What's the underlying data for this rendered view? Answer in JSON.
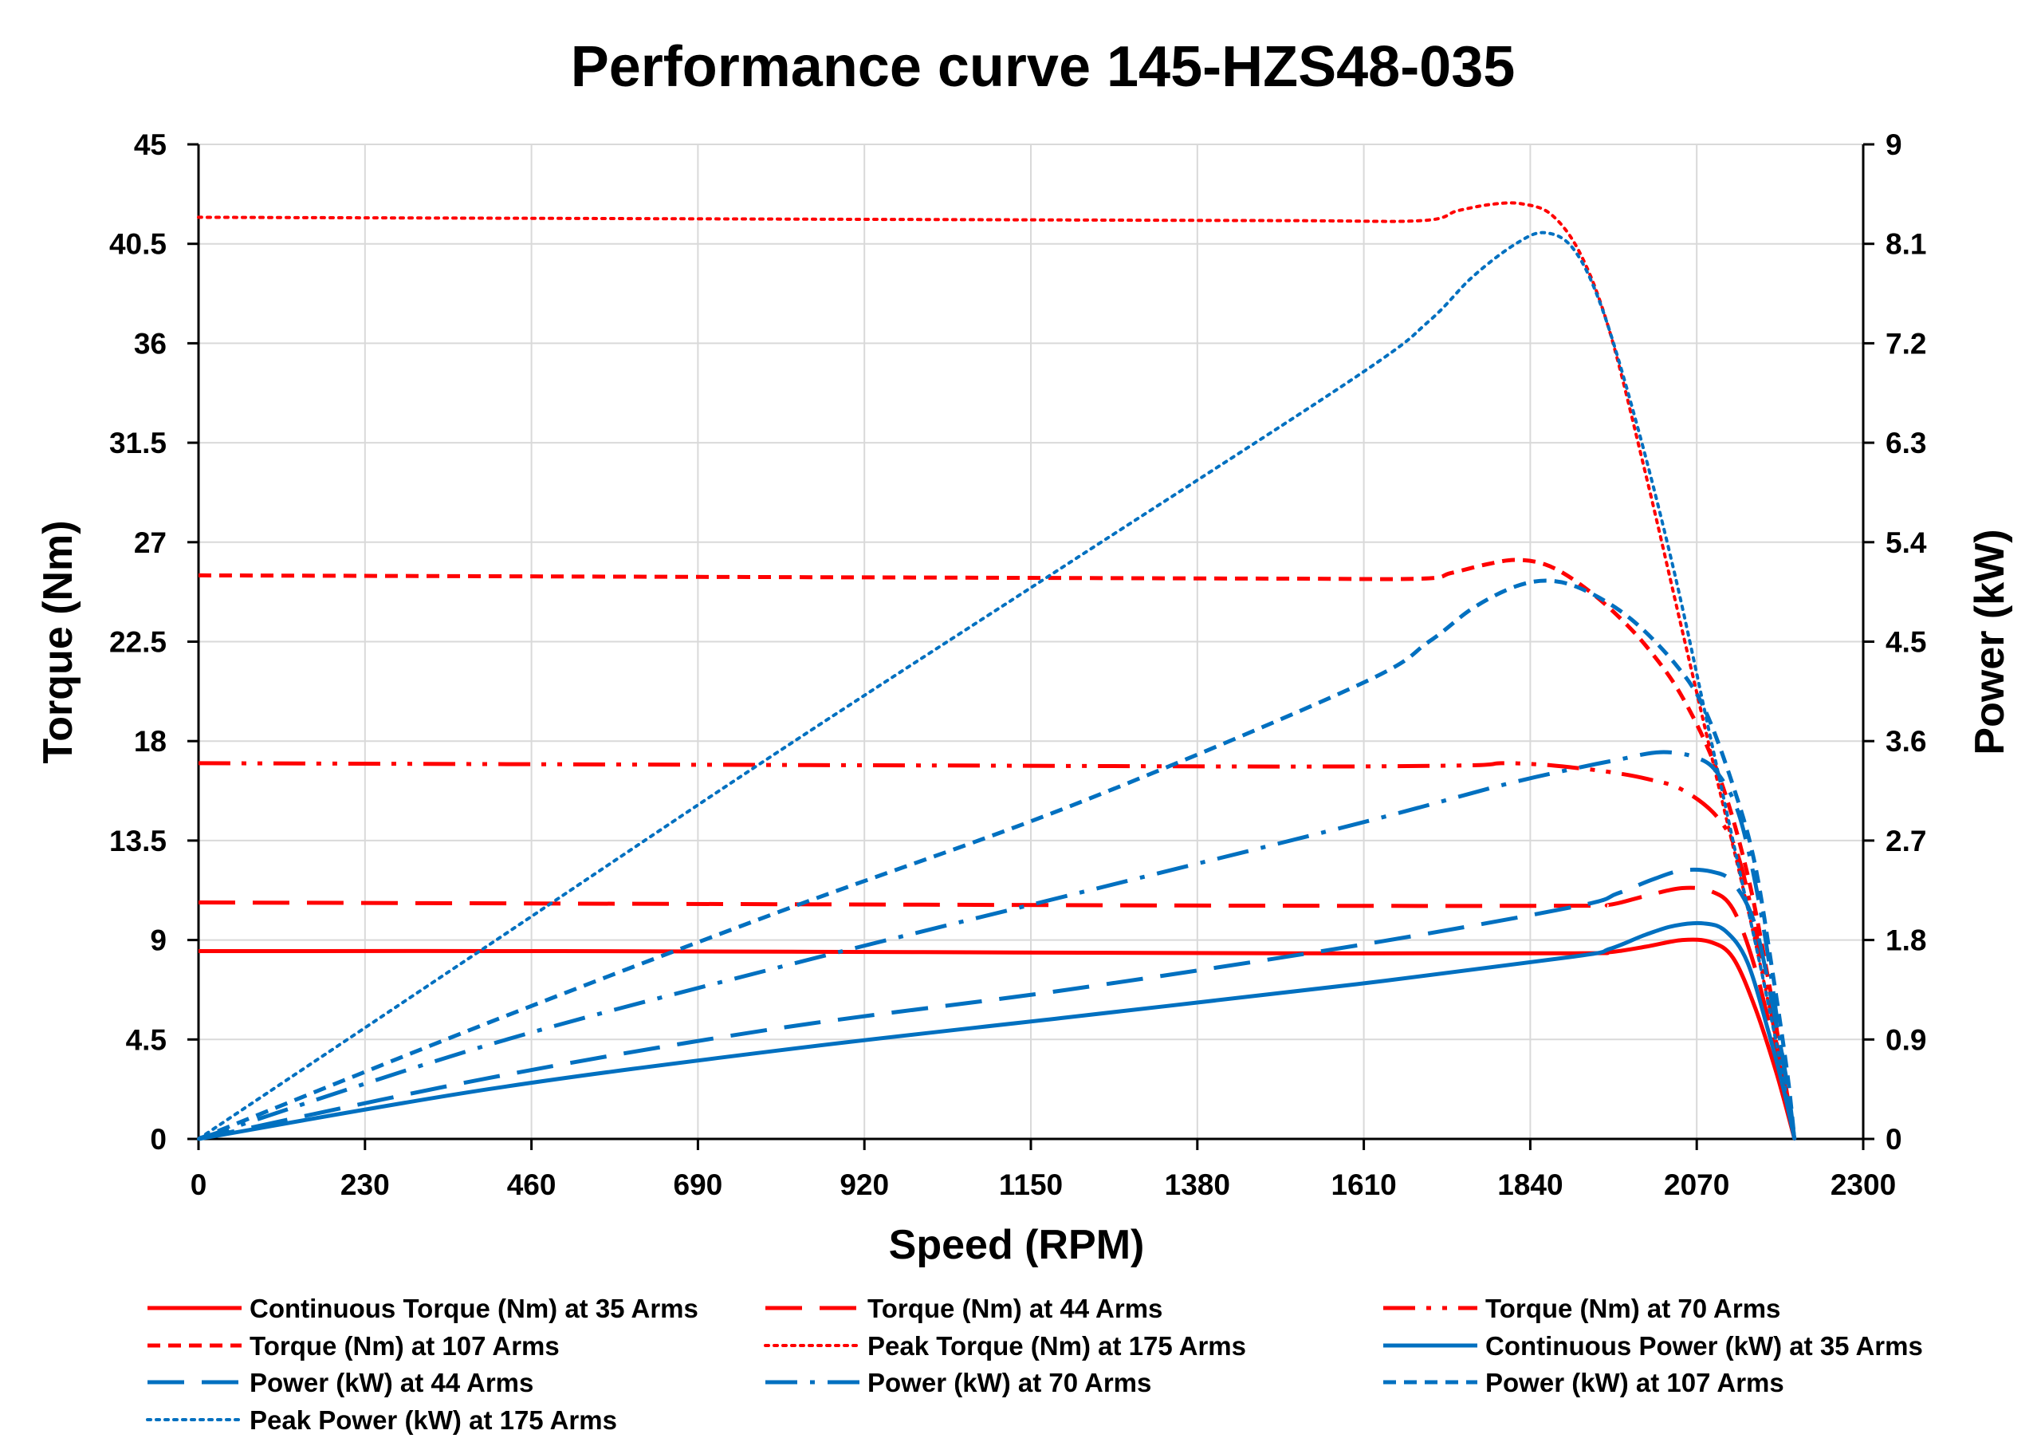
{
  "chart_data": {
    "type": "line",
    "title": "Performance curve 145-HZS48-035",
    "xlabel": "Speed (RPM)",
    "ylabel": "Torque (Nm)",
    "y2label": "Power (kW)",
    "xlim": [
      0,
      2300
    ],
    "ylim": [
      0,
      45
    ],
    "y2lim": [
      0,
      9
    ],
    "xticks": [
      "0",
      "230",
      "460",
      "690",
      "920",
      "1150",
      "1380",
      "1610",
      "1840",
      "2070",
      "2300"
    ],
    "yticks": [
      "0",
      "4.5",
      "9",
      "13.5",
      "18",
      "22.5",
      "27",
      "31.5",
      "36",
      "40.5",
      "45"
    ],
    "y2ticks": [
      "0",
      "0.9",
      "1.8",
      "2.7",
      "3.6",
      "4.5",
      "5.4",
      "6.3",
      "7.2",
      "8.1",
      "9"
    ],
    "grid": true,
    "legend_position": "bottom",
    "series": [
      {
        "name": "Continuous Torque (Nm) at 35 Arms",
        "axis": "left",
        "color": "#ff0000",
        "dash": "solid",
        "points": [
          [
            0,
            8.5
          ],
          [
            500,
            8.5
          ],
          [
            1000,
            8.45
          ],
          [
            1500,
            8.4
          ],
          [
            1900,
            8.4
          ],
          [
            1950,
            8.45
          ],
          [
            2000,
            8.7
          ],
          [
            2050,
            9.0
          ],
          [
            2090,
            8.9
          ],
          [
            2120,
            8.2
          ],
          [
            2150,
            6.0
          ],
          [
            2180,
            3.0
          ],
          [
            2205,
            0
          ]
        ]
      },
      {
        "name": "Torque (Nm) at 44 Arms",
        "axis": "left",
        "color": "#ff0000",
        "dash": "long-dash",
        "points": [
          [
            0,
            10.7
          ],
          [
            500,
            10.65
          ],
          [
            1000,
            10.6
          ],
          [
            1500,
            10.55
          ],
          [
            1900,
            10.55
          ],
          [
            1950,
            10.6
          ],
          [
            2000,
            11.0
          ],
          [
            2050,
            11.35
          ],
          [
            2090,
            11.2
          ],
          [
            2120,
            10.4
          ],
          [
            2150,
            7.8
          ],
          [
            2180,
            3.8
          ],
          [
            2205,
            0
          ]
        ]
      },
      {
        "name": "Torque (Nm) at 70 Arms",
        "axis": "left",
        "color": "#ff0000",
        "dash": "dash-dot-dot",
        "points": [
          [
            0,
            17.0
          ],
          [
            500,
            16.95
          ],
          [
            1000,
            16.9
          ],
          [
            1500,
            16.85
          ],
          [
            1750,
            16.9
          ],
          [
            1800,
            17.0
          ],
          [
            1850,
            16.95
          ],
          [
            1900,
            16.8
          ],
          [
            1950,
            16.6
          ],
          [
            2000,
            16.3
          ],
          [
            2050,
            15.8
          ],
          [
            2100,
            14.5
          ],
          [
            2130,
            12.5
          ],
          [
            2160,
            8.0
          ],
          [
            2185,
            3.5
          ],
          [
            2205,
            0
          ]
        ]
      },
      {
        "name": "Torque (Nm) at 107 Arms",
        "axis": "left",
        "color": "#ff0000",
        "dash": "short-dash",
        "points": [
          [
            0,
            25.5
          ],
          [
            500,
            25.45
          ],
          [
            1000,
            25.4
          ],
          [
            1500,
            25.35
          ],
          [
            1690,
            25.35
          ],
          [
            1730,
            25.6
          ],
          [
            1780,
            26.0
          ],
          [
            1820,
            26.2
          ],
          [
            1860,
            26.0
          ],
          [
            1900,
            25.3
          ],
          [
            1950,
            24.0
          ],
          [
            2000,
            22.3
          ],
          [
            2050,
            20.0
          ],
          [
            2100,
            16.5
          ],
          [
            2140,
            12.0
          ],
          [
            2170,
            7.0
          ],
          [
            2190,
            3.0
          ],
          [
            2205,
            0
          ]
        ]
      },
      {
        "name": "Peak Torque (Nm) at 175 Arms",
        "axis": "left",
        "color": "#ff0000",
        "dash": "dotted",
        "points": [
          [
            0,
            41.7
          ],
          [
            500,
            41.65
          ],
          [
            1000,
            41.6
          ],
          [
            1500,
            41.55
          ],
          [
            1690,
            41.55
          ],
          [
            1740,
            42.0
          ],
          [
            1790,
            42.3
          ],
          [
            1830,
            42.3
          ],
          [
            1870,
            41.8
          ],
          [
            1910,
            40.0
          ],
          [
            1950,
            36.5
          ],
          [
            2000,
            30.0
          ],
          [
            2050,
            23.0
          ],
          [
            2100,
            16.0
          ],
          [
            2140,
            10.5
          ],
          [
            2170,
            6.0
          ],
          [
            2190,
            2.8
          ],
          [
            2205,
            0
          ]
        ]
      },
      {
        "name": "Continuous Power (kW) at 35 Arms",
        "axis": "right",
        "color": "#0070c0",
        "dash": "solid",
        "points": [
          [
            0,
            0
          ],
          [
            400,
            0.45
          ],
          [
            800,
            0.8
          ],
          [
            1200,
            1.1
          ],
          [
            1600,
            1.4
          ],
          [
            1900,
            1.65
          ],
          [
            1950,
            1.72
          ],
          [
            2000,
            1.85
          ],
          [
            2040,
            1.93
          ],
          [
            2080,
            1.95
          ],
          [
            2110,
            1.88
          ],
          [
            2140,
            1.6
          ],
          [
            2170,
            0.95
          ],
          [
            2190,
            0.45
          ],
          [
            2205,
            0
          ]
        ]
      },
      {
        "name": "Power (kW) at 44 Arms",
        "axis": "right",
        "color": "#0070c0",
        "dash": "long-dash",
        "points": [
          [
            0,
            0
          ],
          [
            400,
            0.55
          ],
          [
            800,
            1.0
          ],
          [
            1200,
            1.35
          ],
          [
            1600,
            1.75
          ],
          [
            1900,
            2.1
          ],
          [
            1960,
            2.22
          ],
          [
            2010,
            2.35
          ],
          [
            2050,
            2.43
          ],
          [
            2090,
            2.42
          ],
          [
            2120,
            2.32
          ],
          [
            2150,
            1.95
          ],
          [
            2175,
            1.2
          ],
          [
            2195,
            0.5
          ],
          [
            2205,
            0
          ]
        ]
      },
      {
        "name": "Power (kW) at 70 Arms",
        "axis": "right",
        "color": "#0070c0",
        "dash": "dash-dot",
        "points": [
          [
            0,
            0
          ],
          [
            400,
            0.85
          ],
          [
            800,
            1.55
          ],
          [
            1200,
            2.2
          ],
          [
            1600,
            2.85
          ],
          [
            1800,
            3.2
          ],
          [
            1900,
            3.35
          ],
          [
            1960,
            3.43
          ],
          [
            2020,
            3.5
          ],
          [
            2070,
            3.45
          ],
          [
            2100,
            3.3
          ],
          [
            2130,
            2.9
          ],
          [
            2160,
            2.0
          ],
          [
            2185,
            0.9
          ],
          [
            2205,
            0
          ]
        ]
      },
      {
        "name": "Power (kW) at 107 Arms",
        "axis": "right",
        "color": "#0070c0",
        "dash": "short-dash",
        "points": [
          [
            0,
            0
          ],
          [
            400,
            1.05
          ],
          [
            800,
            2.05
          ],
          [
            1200,
            3.0
          ],
          [
            1600,
            4.1
          ],
          [
            1700,
            4.5
          ],
          [
            1760,
            4.8
          ],
          [
            1820,
            5.0
          ],
          [
            1870,
            5.05
          ],
          [
            1920,
            4.95
          ],
          [
            1980,
            4.7
          ],
          [
            2040,
            4.3
          ],
          [
            2080,
            3.9
          ],
          [
            2120,
            3.2
          ],
          [
            2150,
            2.5
          ],
          [
            2175,
            1.5
          ],
          [
            2195,
            0.6
          ],
          [
            2205,
            0
          ]
        ]
      },
      {
        "name": "Peak Power (kW) at 175 Arms",
        "axis": "right",
        "color": "#0070c0",
        "dash": "dotted",
        "points": [
          [
            0,
            0
          ],
          [
            400,
            1.75
          ],
          [
            800,
            3.5
          ],
          [
            1200,
            5.2
          ],
          [
            1600,
            6.9
          ],
          [
            1700,
            7.4
          ],
          [
            1760,
            7.8
          ],
          [
            1820,
            8.1
          ],
          [
            1860,
            8.2
          ],
          [
            1900,
            8.05
          ],
          [
            1940,
            7.5
          ],
          [
            1990,
            6.4
          ],
          [
            2040,
            5.1
          ],
          [
            2090,
            3.6
          ],
          [
            2130,
            2.4
          ],
          [
            2160,
            1.5
          ],
          [
            2185,
            0.7
          ],
          [
            2205,
            0
          ]
        ]
      }
    ]
  }
}
